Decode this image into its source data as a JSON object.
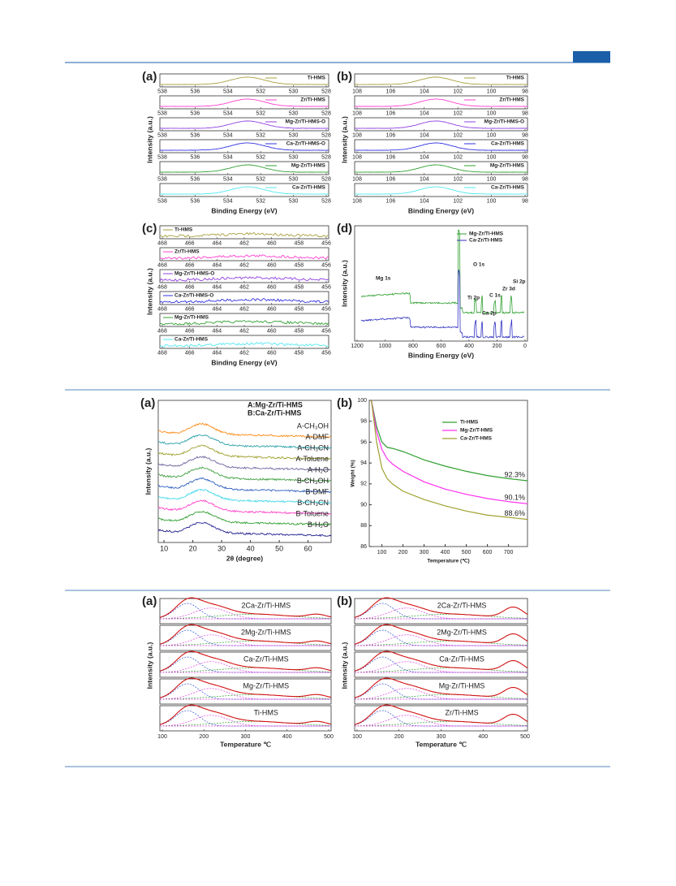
{
  "figures": [
    {
      "panels": [
        {
          "label": "(a)",
          "xlabel": "Binding Energy (eV)",
          "ylabel": "Intensity (a.u.)",
          "xticks": [
            538,
            536,
            534,
            532,
            530,
            528
          ],
          "series": [
            "Ti-HMS",
            "Zr/Ti-HMS",
            "Mg-Zr/Ti-HMS-O",
            "Ca-Zr/Ti-HMS-O",
            "Mg-Zr/Ti-HMS",
            "Ca-Zr/Ti-HMS"
          ],
          "colors": [
            "#a8a040",
            "#ff40d0",
            "#9040e0",
            "#3030e0",
            "#30a030",
            "#50e8f0"
          ]
        },
        {
          "label": "(b)",
          "xlabel": "Binding Energy (eV)",
          "ylabel": "Intensity (a.u.)",
          "xticks": [
            108,
            106,
            104,
            102,
            100,
            98
          ],
          "series": [
            "Ti-HMS",
            "Zr/Ti-HMS",
            "Mg-Zr/Ti-HMS-O",
            "Ca-Zr/Ti-HMS",
            "Mg-Zr/Ti-HMS",
            "Ca-Zr/Ti-HMS"
          ],
          "colors": [
            "#a8a040",
            "#ff40d0",
            "#9040e0",
            "#3030e0",
            "#30a030",
            "#50e8f0"
          ]
        },
        {
          "label": "(c)",
          "xlabel": "Binding Energy (eV)",
          "ylabel": "Intensity (a.u.)",
          "xticks": [
            468,
            466,
            464,
            462,
            460,
            458,
            456
          ],
          "series": [
            "Ti-HMS",
            "Zr/Ti-HMS",
            "Mg-Zr/Ti-HMS-O",
            "Ca-Zr/Ti-HMS-O",
            "Mg-Zr/Ti-HMS",
            "Ca-Zr/Ti-HMS"
          ],
          "colors": [
            "#a8a040",
            "#ff40d0",
            "#9040e0",
            "#3030e0",
            "#30a030",
            "#50e8f0"
          ]
        },
        {
          "label": "(d)",
          "xlabel": "Binding Energy (eV)",
          "ylabel": "Intensity (a.u.)",
          "xticks": [
            1200,
            1000,
            800,
            600,
            400,
            200,
            0
          ],
          "series": [
            "Mg-Zr/Ti-HMS",
            "Ca-Zr/Ti-HMS"
          ],
          "colors": [
            "#30a030",
            "#3030c0"
          ],
          "annotations": [
            "Mg 1s",
            "O 1s",
            "Ti 2p",
            "C 1s",
            "Zr 3d",
            "Si 2p",
            "Ca 2p"
          ]
        }
      ]
    },
    {
      "panels": [
        {
          "label": "(a)",
          "xlabel": "2θ (degree)",
          "ylabel": "Intensity (a.u.)",
          "xlim": [
            8,
            68
          ],
          "xticks": [
            10,
            20,
            30,
            40,
            50,
            60
          ],
          "legend": [
            "A:Mg-Zr/Ti-HMS",
            "B:Ca-Zr/Ti-HMS"
          ],
          "series": [
            "A-CH₃OH",
            "A-DMF",
            "A-CH₃CN",
            "A-Toluene",
            "A-H₂O",
            "B-CH₃OH",
            "B-DMF",
            "B-CH₃CN",
            "B-Toluene",
            "B-H₂O"
          ],
          "colors": [
            "#ff8c1a",
            "#2aa0a8",
            "#a0a030",
            "#7060a0",
            "#40a040",
            "#3060c0",
            "#40d8e8",
            "#ff40c8",
            "#30a030",
            "#202090"
          ]
        },
        {
          "label": "(b)",
          "type": "line",
          "xlabel": "Temperature (℃)",
          "ylabel": "Weight (%)",
          "x": [
            50,
            75,
            100,
            125,
            150,
            200,
            300,
            400,
            500,
            600,
            700,
            790
          ],
          "xlim": [
            40,
            790
          ],
          "ylim": [
            86,
            100
          ],
          "xticks": [
            100,
            200,
            300,
            400,
            500,
            600,
            700
          ],
          "yticks": [
            86,
            88,
            90,
            92,
            94,
            96,
            98,
            100
          ],
          "series": [
            {
              "name": "Ti-HMS",
              "color": "#30a030",
              "values": [
                100,
                97.5,
                96,
                95.5,
                95.4,
                95.1,
                94.3,
                93.7,
                93.2,
                92.8,
                92.5,
                92.3
              ],
              "end_label": "92.3%"
            },
            {
              "name": "Mg-Zr/T-HMS",
              "color": "#ff30f0",
              "values": [
                100,
                97,
                95.3,
                94.4,
                93.9,
                93.2,
                92.2,
                91.5,
                91,
                90.6,
                90.3,
                90.1
              ],
              "end_label": "90.1%"
            },
            {
              "name": "Ca-Zr/T-HMS",
              "color": "#a0a030",
              "values": [
                100,
                96,
                93.5,
                92.5,
                92,
                91.3,
                90.5,
                89.9,
                89.4,
                89,
                88.8,
                88.6
              ],
              "end_label": "88.6%"
            }
          ]
        }
      ]
    },
    {
      "panels": [
        {
          "label": "(a)",
          "xlabel": "Temperature ℃",
          "ylabel": "Intensity (a.u.)",
          "xticks": [
            100,
            200,
            300,
            400,
            500
          ],
          "series": [
            "2Ca-Zr/Ti-HMS",
            "2Mg-Zr/Ti-HMS",
            "Ca-Zr/Ti-HMS",
            "Mg-Zr/Ti-HMS",
            "Ti-HMS"
          ]
        },
        {
          "label": "(b)",
          "xlabel": "Temperature ℃",
          "ylabel": "Intensity (a.u.)",
          "xticks": [
            100,
            200,
            300,
            400,
            500
          ],
          "series": [
            "2Ca-Zr/Ti-HMS",
            "2Mg-Zr/Ti-HMS",
            "Ca-Zr/Ti-HMS",
            "Mg-Zr/Ti-HMS",
            "Zr/Ti-HMS"
          ]
        }
      ]
    }
  ]
}
